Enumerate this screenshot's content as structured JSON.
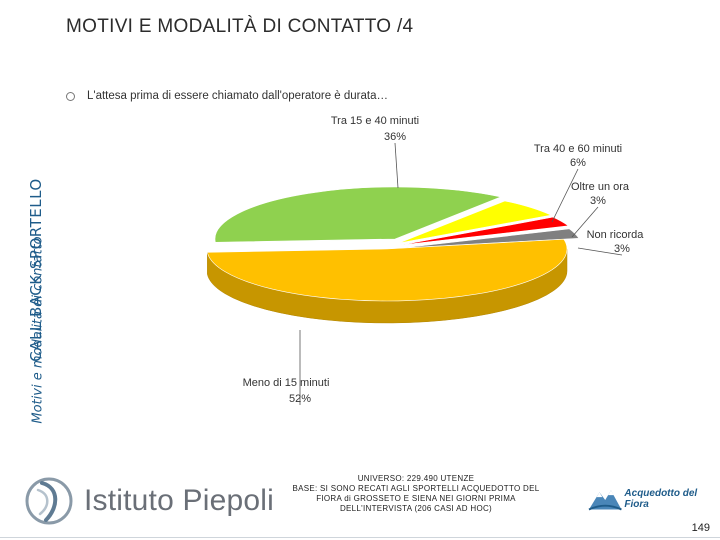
{
  "side": {
    "title": "CALL BACK SPORTELLO",
    "subtitle": "Motivi e modalità di contatto"
  },
  "page_title": "MOTIVI E MODALITÀ DI CONTATTO /4",
  "question": "L'attesa prima di essere chiamato dall'operatore è durata…",
  "chart_data": {
    "type": "pie",
    "title": "",
    "style": "3d-exploded",
    "slices": [
      {
        "label": "Tra 15 e 40 minuti",
        "value": 36,
        "display": "36%",
        "color": "#8fd14f"
      },
      {
        "label": "Tra 40 e 60 minuti",
        "value": 6,
        "display": "6%",
        "color": "#ffff00"
      },
      {
        "label": "Oltre un ora",
        "value": 3,
        "display": "3%",
        "color": "#ff0000"
      },
      {
        "label": "Non ricorda",
        "value": 3,
        "display": "3%",
        "color": "#808080"
      },
      {
        "label": "Meno di 15 minuti",
        "value": 52,
        "display": "52%",
        "color": "#ffc000"
      }
    ]
  },
  "footer": {
    "universe_lines": [
      "UNIVERSO: 229.490 UTENZE",
      "BASE: SI SONO RECATI AGLI SPORTELLI ACQUEDOTTO DEL",
      "FIORA di GROSSETO E SIENA NEI GIORNI PRIMA",
      "DELL'INTERVISTA (206 CASI AD HOC)"
    ],
    "logo_left": "Istituto Piepoli",
    "logo_right": "Acquedotto del Fiora",
    "page_number": "149"
  }
}
